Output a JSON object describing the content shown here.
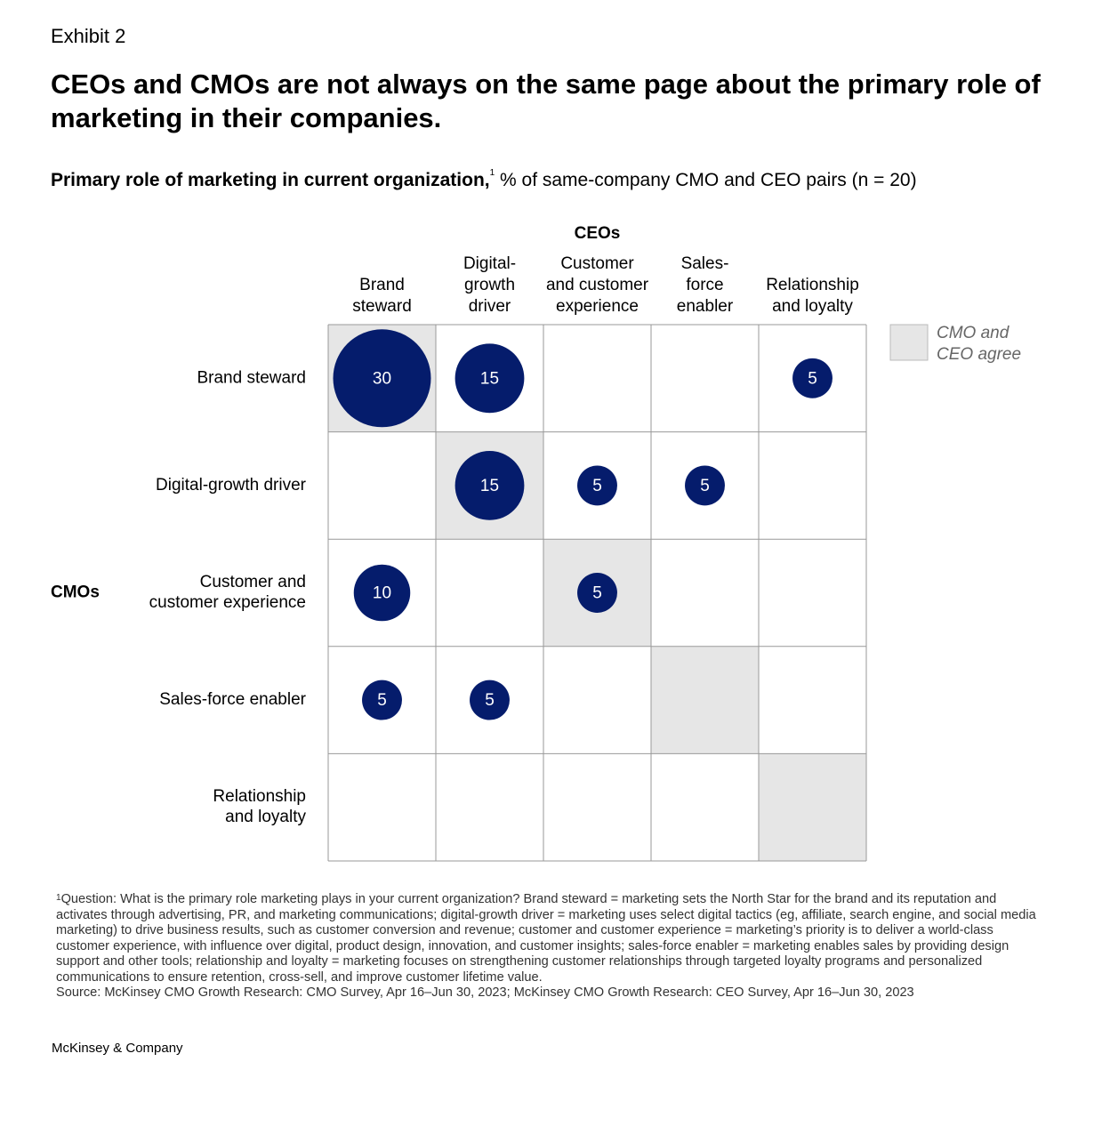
{
  "exhibit": "Exhibit 2",
  "title": "CEOs and CMOs are not always on the same page about the primary role of marketing in their companies.",
  "chart_data": {
    "type": "bubble-matrix",
    "subtitle_bold": "Primary role of marketing in current organization,",
    "subtitle_marker": "1",
    "subtitle_rest": " % of same-company CMO and CEO pairs (n = 20)",
    "column_axis_label": "CEOs",
    "row_axis_label": "CMOs",
    "columns": [
      [
        "Brand",
        "steward"
      ],
      [
        "Digital-",
        "growth",
        "driver"
      ],
      [
        "Customer",
        "and customer",
        "experience"
      ],
      [
        "Sales-",
        "force",
        "enabler"
      ],
      [
        "Relationship",
        "and loyalty"
      ]
    ],
    "rows": [
      [
        "Brand steward"
      ],
      [
        "Digital-growth driver"
      ],
      [
        "Customer and",
        "customer experience"
      ],
      [
        "Sales-force enabler"
      ],
      [
        "Relationship",
        "and loyalty"
      ]
    ],
    "values": [
      [
        30,
        15,
        null,
        null,
        5
      ],
      [
        null,
        15,
        5,
        5,
        null
      ],
      [
        10,
        null,
        5,
        null,
        null
      ],
      [
        5,
        5,
        null,
        null,
        null
      ],
      [
        null,
        null,
        null,
        null,
        null
      ]
    ],
    "bubble_color": "#051c6c",
    "agree_color": "#e6e6e6",
    "legend_label": [
      "CMO and",
      "CEO agree"
    ]
  },
  "footnote_marker": "1",
  "footnote": "Question: What is the primary role marketing plays in your current organization? Brand steward = marketing sets the North Star for the brand and its reputation and activates through advertising, PR, and marketing communications; digital-growth driver = marketing uses select digital tactics (eg, affiliate, search engine, and social media marketing) to drive business results, such as customer conversion and revenue; customer and customer experience = marketing’s priority is to deliver a world-class customer experience, with influence over digital, product design, innovation, and customer insights; sales-force enabler = marketing enables sales by providing design support and other tools; relationship and loyalty = marketing focuses on strengthening customer relationships through targeted loyalty programs and personalized communications to ensure retention, cross-sell, and improve customer lifetime value.",
  "source": "Source: McKinsey CMO Growth Research: CMO Survey, Apr 16–Jun 30, 2023; McKinsey CMO Growth Research: CEO Survey, Apr 16–Jun 30, 2023",
  "brand": "McKinsey & Company"
}
